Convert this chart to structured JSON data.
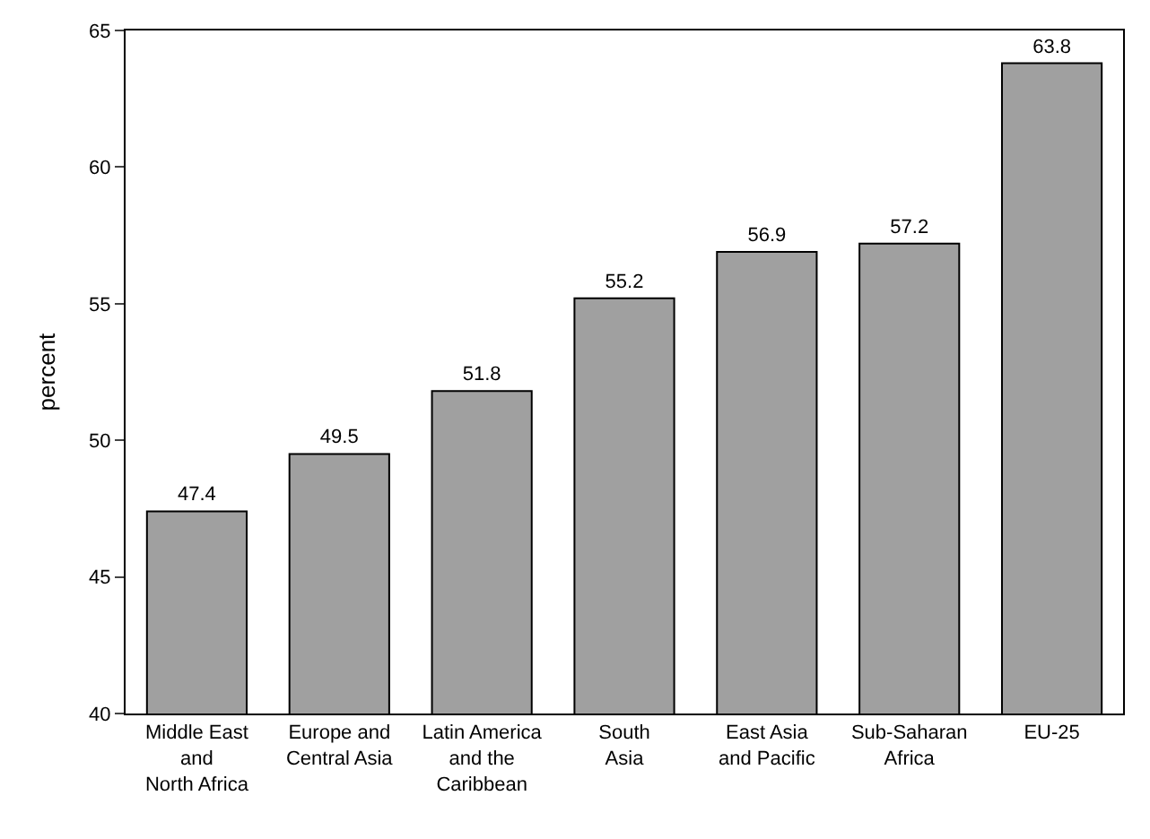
{
  "chart_data": {
    "type": "bar",
    "ylabel": "percent",
    "categories": [
      "Middle East\nand\nNorth Africa",
      "Europe and\nCentral Asia",
      "Latin America\nand the\nCaribbean",
      "South\nAsia",
      "East Asia\nand Pacific",
      "Sub-Saharan\nAfrica",
      "EU-25"
    ],
    "values": [
      47.4,
      49.5,
      51.8,
      55.2,
      56.9,
      57.2,
      63.8
    ],
    "color": "#a0a0a0",
    "data_labels": true,
    "ylim": [
      40,
      65
    ],
    "yticks": [
      40,
      45,
      50,
      55,
      60,
      65
    ]
  }
}
